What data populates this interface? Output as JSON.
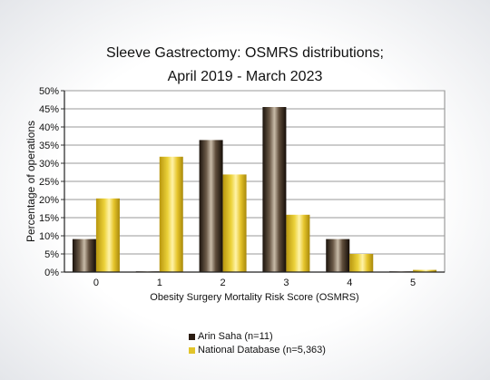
{
  "chart_data": {
    "type": "bar",
    "title_lines": [
      "Sleeve Gastrectomy: OSMRS distributions;",
      "April 2019 - March 2023"
    ],
    "xlabel": "Obesity Surgery Mortality Risk Score (OSMRS)",
    "ylabel": "Percentage of operations",
    "categories": [
      "0",
      "1",
      "2",
      "3",
      "4",
      "5"
    ],
    "ylim": [
      0,
      50
    ],
    "yticks": [
      "0%",
      "5%",
      "10%",
      "15%",
      "20%",
      "25%",
      "30%",
      "35%",
      "40%",
      "45%",
      "50%"
    ],
    "grid": true,
    "legend_position": "bottom",
    "series": [
      {
        "name": "Arin Saha (n=11)",
        "values": [
          9.1,
          0.2,
          36.4,
          45.5,
          9.1,
          0.2
        ],
        "color": "#2b1d12"
      },
      {
        "name": "National Database (n=5,363)",
        "values": [
          20.3,
          31.8,
          26.9,
          15.8,
          5.0,
          0.6
        ],
        "color": "#e2c42a"
      }
    ]
  }
}
